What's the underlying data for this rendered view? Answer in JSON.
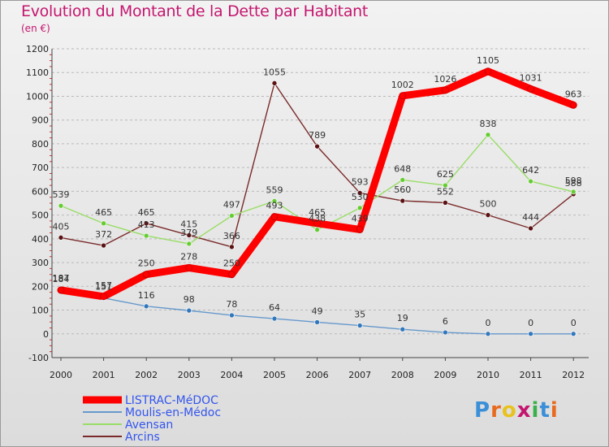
{
  "header": {
    "title": "Evolution du Montant de la Dette par Habitant",
    "subtitle": "(en €)"
  },
  "logo": {
    "text": "Proxiti",
    "colors": [
      "#3a8fd8",
      "#e86a1e",
      "#e8c21e",
      "#c4166f",
      "#3ab04a",
      "#3a8fd8",
      "#e86a1e"
    ]
  },
  "chart_data": {
    "type": "line",
    "title": "Evolution du Montant de la Dette par Habitant",
    "subtitle": "(en €)",
    "x": [
      "2000",
      "2001",
      "2002",
      "2003",
      "2004",
      "2005",
      "2006",
      "2007",
      "2008",
      "2009",
      "2010",
      "2011",
      "2012"
    ],
    "ylim": [
      -100,
      1200
    ],
    "yticks": [
      -100,
      0,
      100,
      200,
      300,
      400,
      500,
      600,
      700,
      800,
      900,
      1000,
      1100,
      1200
    ],
    "grid": "horizontal dashed",
    "legend": "bottom-left",
    "series": [
      {
        "name": "Arcins",
        "color": "#7a2a2a",
        "marker": "#5a1212",
        "values": [
          405,
          372,
          465,
          415,
          366,
          1055,
          789,
          593,
          560,
          552,
          500,
          444,
          588
        ]
      },
      {
        "name": "Avensan",
        "color": "#99dd66",
        "marker": "#66cc33",
        "values": [
          539,
          465,
          413,
          379,
          497,
          559,
          438,
          530,
          648,
          625,
          838,
          642,
          598
        ]
      },
      {
        "name": "Moulis-en-Médoc",
        "color": "#6699cc",
        "marker": "#3377bb",
        "values": [
          187,
          151,
          116,
          98,
          78,
          64,
          49,
          35,
          19,
          6,
          0,
          0,
          0
        ]
      },
      {
        "name": "LISTRAC-MéDOC",
        "color": "#ff0000",
        "marker": "#ff0000",
        "values": [
          184,
          157,
          250,
          278,
          250,
          493,
          465,
          439,
          1002,
          1026,
          1105,
          1031,
          963
        ]
      }
    ],
    "legend_order": [
      "LISTRAC-MéDOC",
      "Moulis-en-Médoc",
      "Avensan",
      "Arcins"
    ]
  }
}
